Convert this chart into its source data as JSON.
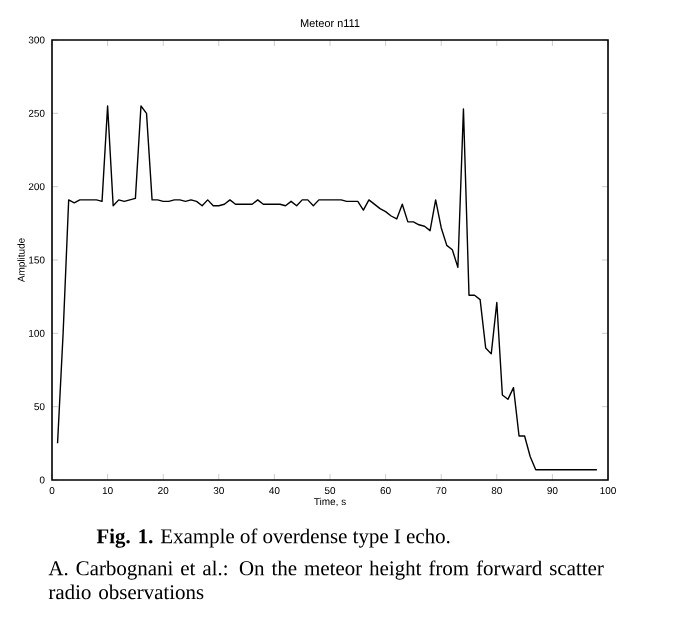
{
  "chart_data": {
    "type": "line",
    "title": "Meteor n111",
    "xlabel": "Time, s",
    "ylabel": "Amplitude",
    "x": [
      1,
      2,
      3,
      4,
      5,
      6,
      7,
      8,
      9,
      10,
      11,
      12,
      13,
      14,
      15,
      16,
      17,
      18,
      19,
      20,
      21,
      22,
      23,
      24,
      25,
      26,
      27,
      28,
      29,
      30,
      31,
      32,
      33,
      34,
      35,
      36,
      37,
      38,
      39,
      40,
      41,
      42,
      43,
      44,
      45,
      46,
      47,
      48,
      49,
      50,
      51,
      52,
      53,
      54,
      55,
      56,
      57,
      58,
      59,
      60,
      61,
      62,
      63,
      64,
      65,
      66,
      67,
      68,
      69,
      70,
      71,
      72,
      73,
      74,
      75,
      76,
      77,
      78,
      79,
      80,
      81,
      82,
      83,
      84,
      85,
      86,
      87,
      88,
      89,
      90,
      91,
      92,
      93,
      94,
      95,
      96,
      97,
      98
    ],
    "values": [
      25,
      100,
      191,
      189,
      191,
      191,
      191,
      191,
      190,
      255,
      187,
      191,
      190,
      191,
      192,
      255,
      250,
      191,
      191,
      190,
      190,
      191,
      191,
      190,
      191,
      190,
      187,
      191,
      187,
      187,
      188,
      191,
      188,
      188,
      188,
      188,
      191,
      188,
      188,
      188,
      188,
      187,
      190,
      187,
      191,
      191,
      187,
      191,
      191,
      191,
      191,
      191,
      190,
      190,
      190,
      184,
      191,
      188,
      185,
      183,
      180,
      178,
      188,
      176,
      176,
      174,
      173,
      170,
      191,
      172,
      160,
      157,
      145,
      253,
      126,
      126,
      123,
      90,
      86,
      121,
      58,
      55,
      63,
      30,
      30,
      16,
      7,
      7,
      7,
      7,
      7,
      7,
      7,
      7,
      7,
      7,
      7,
      7
    ],
    "color": "#000000",
    "marker": "none",
    "line_style": "solid",
    "xlim": [
      0,
      100
    ],
    "ylim": [
      0,
      300
    ],
    "xticks": [
      0,
      10,
      20,
      30,
      40,
      50,
      60,
      70,
      80,
      90,
      100
    ],
    "yticks": [
      0,
      50,
      100,
      150,
      200,
      250,
      300
    ],
    "annotations": [
      "**Fig. 1.** Example of overdense type I echo.",
      "A. Carbognani et al.:  On the meteor height from forward scatter radio observations"
    ]
  }
}
